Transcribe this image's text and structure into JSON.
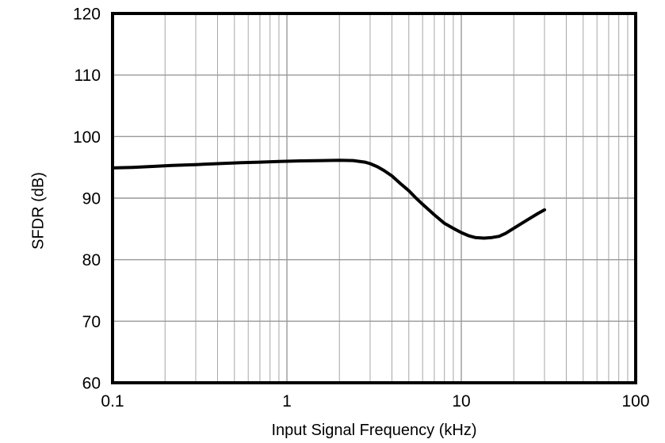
{
  "chart_data": {
    "type": "line",
    "title": "",
    "xlabel": "Input Signal Frequency (kHz)",
    "ylabel": "SFDR (dB)",
    "x_scale": "log",
    "xlim": [
      0.1,
      100
    ],
    "ylim": [
      60,
      120
    ],
    "x_ticks": [
      0.1,
      1,
      10,
      100
    ],
    "x_tick_labels": [
      "0.1",
      "1",
      "10",
      "100"
    ],
    "y_ticks": [
      60,
      70,
      80,
      90,
      100,
      110,
      120
    ],
    "y_tick_labels": [
      "60",
      "70",
      "80",
      "90",
      "100",
      "110",
      "120"
    ],
    "grid": true,
    "legend": "none",
    "colors": {
      "line": "#000000",
      "frame": "#000000",
      "grid_minor": "#a6a6a6",
      "grid_major": "#999999",
      "text": "#000000",
      "background": "#ffffff"
    },
    "series": [
      {
        "name": "SFDR",
        "points": [
          [
            0.1,
            94.9
          ],
          [
            0.13,
            95.0
          ],
          [
            0.17,
            95.15
          ],
          [
            0.22,
            95.3
          ],
          [
            0.3,
            95.45
          ],
          [
            0.4,
            95.6
          ],
          [
            0.55,
            95.75
          ],
          [
            0.7,
            95.85
          ],
          [
            0.9,
            95.95
          ],
          [
            1.2,
            96.05
          ],
          [
            1.6,
            96.1
          ],
          [
            2.0,
            96.15
          ],
          [
            2.4,
            96.1
          ],
          [
            2.8,
            95.85
          ],
          [
            3.0,
            95.6
          ],
          [
            3.3,
            95.1
          ],
          [
            3.6,
            94.5
          ],
          [
            4.0,
            93.6
          ],
          [
            4.5,
            92.3
          ],
          [
            5.0,
            91.2
          ],
          [
            5.5,
            90.0
          ],
          [
            6.0,
            89.0
          ],
          [
            7.0,
            87.3
          ],
          [
            8.0,
            85.9
          ],
          [
            9.0,
            85.1
          ],
          [
            10.0,
            84.4
          ],
          [
            11.0,
            83.9
          ],
          [
            12.0,
            83.6
          ],
          [
            13.5,
            83.5
          ],
          [
            15.0,
            83.6
          ],
          [
            16.5,
            83.8
          ],
          [
            18.0,
            84.3
          ],
          [
            20.0,
            85.1
          ],
          [
            22.5,
            86.0
          ],
          [
            25.0,
            86.8
          ],
          [
            27.5,
            87.5
          ],
          [
            30.0,
            88.1
          ]
        ]
      }
    ]
  }
}
